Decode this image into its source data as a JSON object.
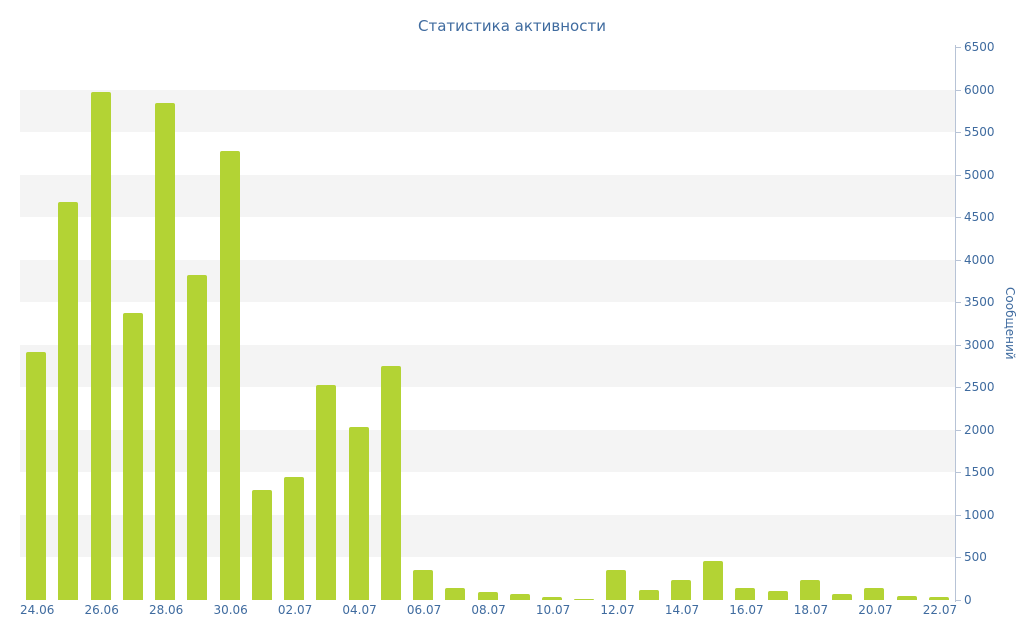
{
  "chart_data": {
    "type": "bar",
    "title": "Статистика активности",
    "xlabel": "",
    "ylabel": "Сообщений",
    "ylim": [
      0,
      6500
    ],
    "ytick_step": 500,
    "yticks": [
      0,
      500,
      1000,
      1500,
      2000,
      2500,
      3000,
      3500,
      4000,
      4500,
      5000,
      5500,
      6000,
      6500
    ],
    "grid": "alternating horizontal bands every 500 units",
    "legend": "none",
    "axis_side": "right",
    "bar_color": "#b3d334",
    "axis_text_color": "#3f6b9f",
    "axis_line_color": "#b7c3d6",
    "band_color": "#f4f4f4",
    "background_color": "#ffffff",
    "categories": [
      "24.06",
      "25.06",
      "26.06",
      "27.06",
      "28.06",
      "29.06",
      "30.06",
      "01.07",
      "02.07",
      "03.07",
      "04.07",
      "05.07",
      "06.07",
      "07.07",
      "08.07",
      "09.07",
      "10.07",
      "11.07",
      "12.07",
      "13.07",
      "14.07",
      "15.07",
      "16.07",
      "17.07",
      "18.07",
      "19.07",
      "20.07",
      "21.07",
      "22.07"
    ],
    "x_tick_labels": [
      "24.06",
      "26.06",
      "28.06",
      "30.06",
      "02.07",
      "04.07",
      "06.07",
      "08.07",
      "10.07",
      "12.07",
      "14.07",
      "16.07",
      "18.07",
      "20.07",
      "22.07"
    ],
    "values": [
      2910,
      4680,
      5970,
      3370,
      5840,
      3820,
      5280,
      1290,
      1450,
      2530,
      2030,
      2750,
      350,
      140,
      90,
      70,
      35,
      15,
      350,
      120,
      235,
      460,
      140,
      105,
      235,
      70,
      140,
      45,
      40
    ]
  }
}
